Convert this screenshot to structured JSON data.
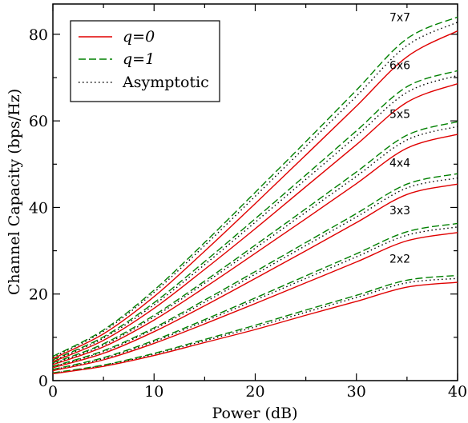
{
  "chart_data": {
    "type": "line",
    "xlabel": "Power (dB)",
    "ylabel": "Channel Capacity (bps/Hz)",
    "xlim": [
      0,
      40
    ],
    "ylim": [
      0,
      87
    ],
    "x_ticks": [
      0,
      10,
      20,
      30,
      40
    ],
    "y_ticks": [
      0,
      20,
      40,
      60,
      80
    ],
    "grid": false,
    "legend": {
      "position": "top-left",
      "entries": [
        {
          "label": "q=0",
          "color": "#e00000",
          "style": "solid"
        },
        {
          "label": "q=1",
          "color": "#008000",
          "style": "dashed"
        },
        {
          "label": "Asymptotic",
          "color": "#000000",
          "style": "dotted"
        }
      ]
    },
    "x": [
      0,
      5,
      10,
      15,
      20,
      25,
      30,
      35,
      40
    ],
    "groups": [
      {
        "label": "2x2",
        "q0": [
          1.6,
          3.3,
          5.8,
          8.8,
          11.8,
          15.1,
          18.3,
          21.6,
          22.7
        ],
        "q1": [
          1.8,
          3.6,
          6.3,
          9.5,
          12.8,
          16.3,
          19.7,
          23.2,
          24.3
        ],
        "asymptotic": [
          1.7,
          3.5,
          6.1,
          9.2,
          12.4,
          15.8,
          19.2,
          22.6,
          23.6
        ]
      },
      {
        "label": "3x3",
        "q0": [
          2.3,
          4.8,
          8.6,
          13.1,
          17.8,
          22.6,
          27.4,
          32.3,
          34.2
        ],
        "q1": [
          2.6,
          5.3,
          9.3,
          14.1,
          19.1,
          24.2,
          29.3,
          34.4,
          36.3
        ],
        "asymptotic": [
          2.5,
          5.1,
          9.0,
          13.7,
          18.6,
          23.6,
          28.6,
          33.6,
          35.5
        ]
      },
      {
        "label": "4x4",
        "q0": [
          3.0,
          6.3,
          11.3,
          17.3,
          23.6,
          30.0,
          36.5,
          43.0,
          45.4
        ],
        "q1": [
          3.3,
          6.9,
          12.2,
          18.6,
          25.2,
          31.9,
          38.6,
          45.4,
          47.8
        ],
        "asymptotic": [
          3.2,
          6.7,
          11.9,
          18.1,
          24.6,
          31.2,
          37.8,
          44.5,
          46.8
        ]
      },
      {
        "label": "5x5",
        "q0": [
          3.7,
          7.8,
          14.0,
          21.5,
          29.4,
          37.4,
          45.5,
          53.7,
          56.9
        ],
        "q1": [
          4.1,
          8.5,
          15.1,
          23.0,
          31.3,
          39.7,
          48.2,
          56.7,
          59.8
        ],
        "asymptotic": [
          3.9,
          8.2,
          14.7,
          22.5,
          30.6,
          38.9,
          47.2,
          55.6,
          58.7
        ]
      },
      {
        "label": "6x6",
        "q0": [
          4.4,
          9.3,
          16.7,
          25.7,
          35.1,
          44.8,
          54.5,
          64.3,
          68.6
        ],
        "q1": [
          4.8,
          10.1,
          18.0,
          27.5,
          37.4,
          47.5,
          57.7,
          67.9,
          71.6
        ],
        "asymptotic": [
          4.6,
          9.8,
          17.5,
          26.8,
          36.6,
          46.5,
          56.5,
          66.6,
          70.5
        ]
      },
      {
        "label": "7x7",
        "q0": [
          5.1,
          10.8,
          19.4,
          29.9,
          40.9,
          52.1,
          63.4,
          74.8,
          80.8
        ],
        "q1": [
          5.6,
          11.7,
          20.9,
          31.9,
          43.5,
          55.2,
          67.1,
          79.0,
          84.0
        ],
        "asymptotic": [
          5.4,
          11.4,
          20.4,
          31.2,
          42.6,
          54.1,
          65.7,
          77.4,
          82.8
        ]
      }
    ]
  }
}
